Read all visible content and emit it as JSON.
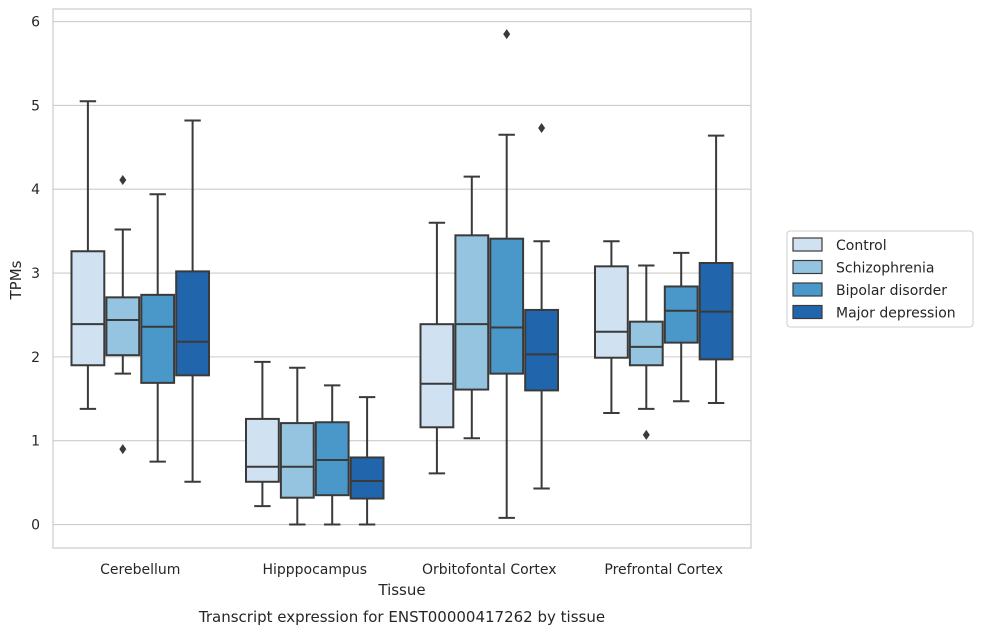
{
  "chart_data": {
    "type": "box",
    "title": "",
    "caption": "Transcript expression for ENST00000417262 by tissue",
    "xlabel": "Tissue",
    "ylabel": "TPMs",
    "ylim": [
      -0.28,
      6.15
    ],
    "yticks": [
      0,
      1,
      2,
      3,
      4,
      5,
      6
    ],
    "grid": "horizontal",
    "legend_position": "right",
    "categories": [
      "Cerebellum",
      "Hipppocampus",
      "Orbitofontal Cortex",
      "Prefrontal Cortex"
    ],
    "series": [
      {
        "name": "Control",
        "color": "#d0e1f2",
        "boxes": [
          {
            "whislo": 1.38,
            "q1": 1.9,
            "med": 2.39,
            "q3": 3.26,
            "whishi": 5.05,
            "fliers": []
          },
          {
            "whislo": 0.22,
            "q1": 0.51,
            "med": 0.69,
            "q3": 1.26,
            "whishi": 1.94,
            "fliers": []
          },
          {
            "whislo": 0.61,
            "q1": 1.16,
            "med": 1.68,
            "q3": 2.39,
            "whishi": 3.6,
            "fliers": []
          },
          {
            "whislo": 1.33,
            "q1": 1.99,
            "med": 2.3,
            "q3": 3.08,
            "whishi": 3.38,
            "fliers": []
          }
        ]
      },
      {
        "name": "Schizophrenia",
        "color": "#94c4df",
        "boxes": [
          {
            "whislo": 1.8,
            "q1": 2.02,
            "med": 2.44,
            "q3": 2.71,
            "whishi": 3.52,
            "fliers": [
              4.11,
              0.9
            ]
          },
          {
            "whislo": 0.0,
            "q1": 0.32,
            "med": 0.69,
            "q3": 1.21,
            "whishi": 1.87,
            "fliers": []
          },
          {
            "whislo": 1.03,
            "q1": 1.61,
            "med": 2.39,
            "q3": 3.45,
            "whishi": 4.15,
            "fliers": []
          },
          {
            "whislo": 1.38,
            "q1": 1.9,
            "med": 2.12,
            "q3": 2.42,
            "whishi": 3.09,
            "fliers": [
              1.07
            ]
          }
        ]
      },
      {
        "name": "Bipolar disorder",
        "color": "#4a98c9",
        "boxes": [
          {
            "whislo": 0.75,
            "q1": 1.69,
            "med": 2.36,
            "q3": 2.74,
            "whishi": 3.94,
            "fliers": []
          },
          {
            "whislo": 0.0,
            "q1": 0.35,
            "med": 0.77,
            "q3": 1.22,
            "whishi": 1.66,
            "fliers": []
          },
          {
            "whislo": 0.08,
            "q1": 1.8,
            "med": 2.35,
            "q3": 3.41,
            "whishi": 4.65,
            "fliers": [
              5.85
            ]
          },
          {
            "whislo": 1.47,
            "q1": 2.17,
            "med": 2.55,
            "q3": 2.84,
            "whishi": 3.24,
            "fliers": []
          }
        ]
      },
      {
        "name": "Major depression",
        "color": "#2166ac",
        "boxes": [
          {
            "whislo": 0.51,
            "q1": 1.78,
            "med": 2.18,
            "q3": 3.02,
            "whishi": 4.82,
            "fliers": []
          },
          {
            "whislo": 0.0,
            "q1": 0.31,
            "med": 0.52,
            "q3": 0.8,
            "whishi": 1.52,
            "fliers": []
          },
          {
            "whislo": 0.43,
            "q1": 1.6,
            "med": 2.03,
            "q3": 2.56,
            "whishi": 3.38,
            "fliers": [
              4.73
            ]
          },
          {
            "whislo": 1.45,
            "q1": 1.97,
            "med": 2.54,
            "q3": 3.12,
            "whishi": 4.64,
            "fliers": []
          }
        ]
      }
    ]
  }
}
